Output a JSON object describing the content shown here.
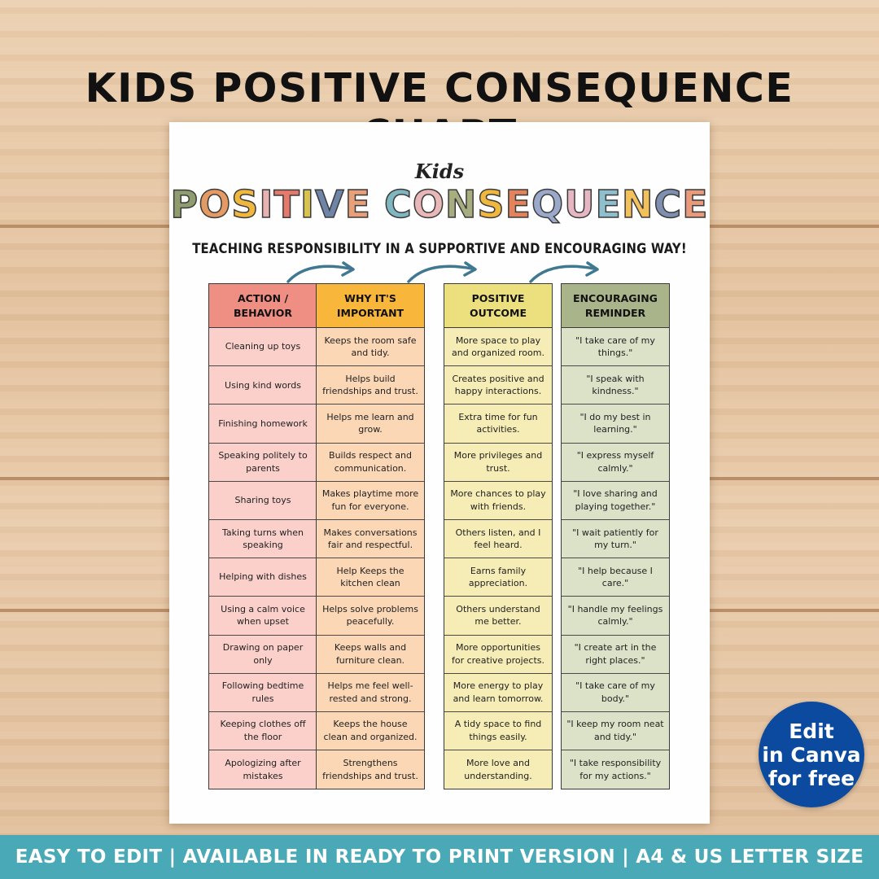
{
  "main_title": "KIDS POSITIVE CONSEQUENCE CHART",
  "sheet": {
    "kids": "Kids",
    "title_letters": [
      "P",
      "O",
      "S",
      "I",
      "T",
      "I",
      "V",
      "E",
      " ",
      "C",
      "O",
      "N",
      "S",
      "E",
      "Q",
      "U",
      "E",
      "N",
      "C",
      "E"
    ],
    "title_colors": [
      "#8f9c6f",
      "#e49a64",
      "#f0b73f",
      "#e6b2b2",
      "#e37a6c",
      "#d9c34f",
      "#6f85a8",
      "#e8a07a",
      "",
      "#7fb6bf",
      "#e8b8b8",
      "#a7ad7e",
      "#f0b73f",
      "#e2835c",
      "#9aa9c9",
      "#e6b6c2",
      "#8fbfcc",
      "#f2c15c",
      "#7f8fb0",
      "#e89a7a"
    ],
    "subtitle": "TEACHING RESPONSIBILITY IN A SUPPORTIVE AND ENCOURAGING WAY!",
    "arrow_color": "#3f7890",
    "columns": [
      {
        "header": "ACTION / BEHAVIOR",
        "header_color": "#ef8e83",
        "cell_color": "#fbd0cb",
        "cells": [
          "Cleaning up toys",
          "Using kind words",
          "Finishing homework",
          "Speaking politely to parents",
          "Sharing toys",
          "Taking turns when speaking",
          "Helping with dishes",
          "Using a calm voice when upset",
          "Drawing on paper only",
          "Following bedtime rules",
          "Keeping clothes off the floor",
          "Apologizing after mistakes"
        ]
      },
      {
        "header": "WHY IT'S IMPORTANT",
        "header_color": "#f8b63a",
        "cell_color": "#fbd7b5",
        "cells": [
          "Keeps the room safe and tidy.",
          "Helps build friendships and trust.",
          "Helps me learn and grow.",
          "Builds respect and communication.",
          "Makes playtime more fun for everyone.",
          "Makes conversations fair and respectful.",
          "Help Keeps the kitchen clean",
          "Helps solve problems peacefully.",
          "Keeps walls and furniture clean.",
          "Helps me feel well-rested and strong.",
          "Keeps the house clean and organized.",
          "Strengthens friendships and trust."
        ]
      },
      {
        "header": "POSITIVE OUTCOME",
        "header_color": "#ece07e",
        "cell_color": "#f6ecb5",
        "cells": [
          "More space to play and organized room.",
          "Creates positive and happy interactions.",
          "Extra time for fun activities.",
          "More privileges and trust.",
          "More chances to play with friends.",
          "Others listen, and I feel heard.",
          "Earns family appreciation.",
          "Others understand me better.",
          "More opportunities for creative projects.",
          "More energy to play and learn tomorrow.",
          "A tidy space to find things easily.",
          "More love and understanding."
        ]
      },
      {
        "header": "ENCOURAGING REMINDER",
        "header_color": "#aab48a",
        "cell_color": "#dce2c8",
        "cells": [
          "\"I take care of my things.\"",
          "\"I speak with kindness.\"",
          "\"I do my best in learning.\"",
          "\"I express myself calmly.\"",
          "\"I love sharing and playing together.\"",
          "\"I wait patiently for my turn.\"",
          "\"I help because I care.\"",
          "\"I handle my feelings calmly.\"",
          "\"I create art in the right places.\"",
          "\"I take care of my body.\"",
          "\"I keep my room neat and tidy.\"",
          "\"I take responsibility for my actions.\""
        ]
      }
    ]
  },
  "badge": {
    "line1": "Edit",
    "line2": "in Canva",
    "line3": "for free",
    "color": "#0b4a9e"
  },
  "footer": {
    "text": "EASY TO EDIT | AVAILABLE IN READY TO PRINT VERSION | A4 & US LETTER SIZE",
    "color": "#4aa9b6"
  }
}
